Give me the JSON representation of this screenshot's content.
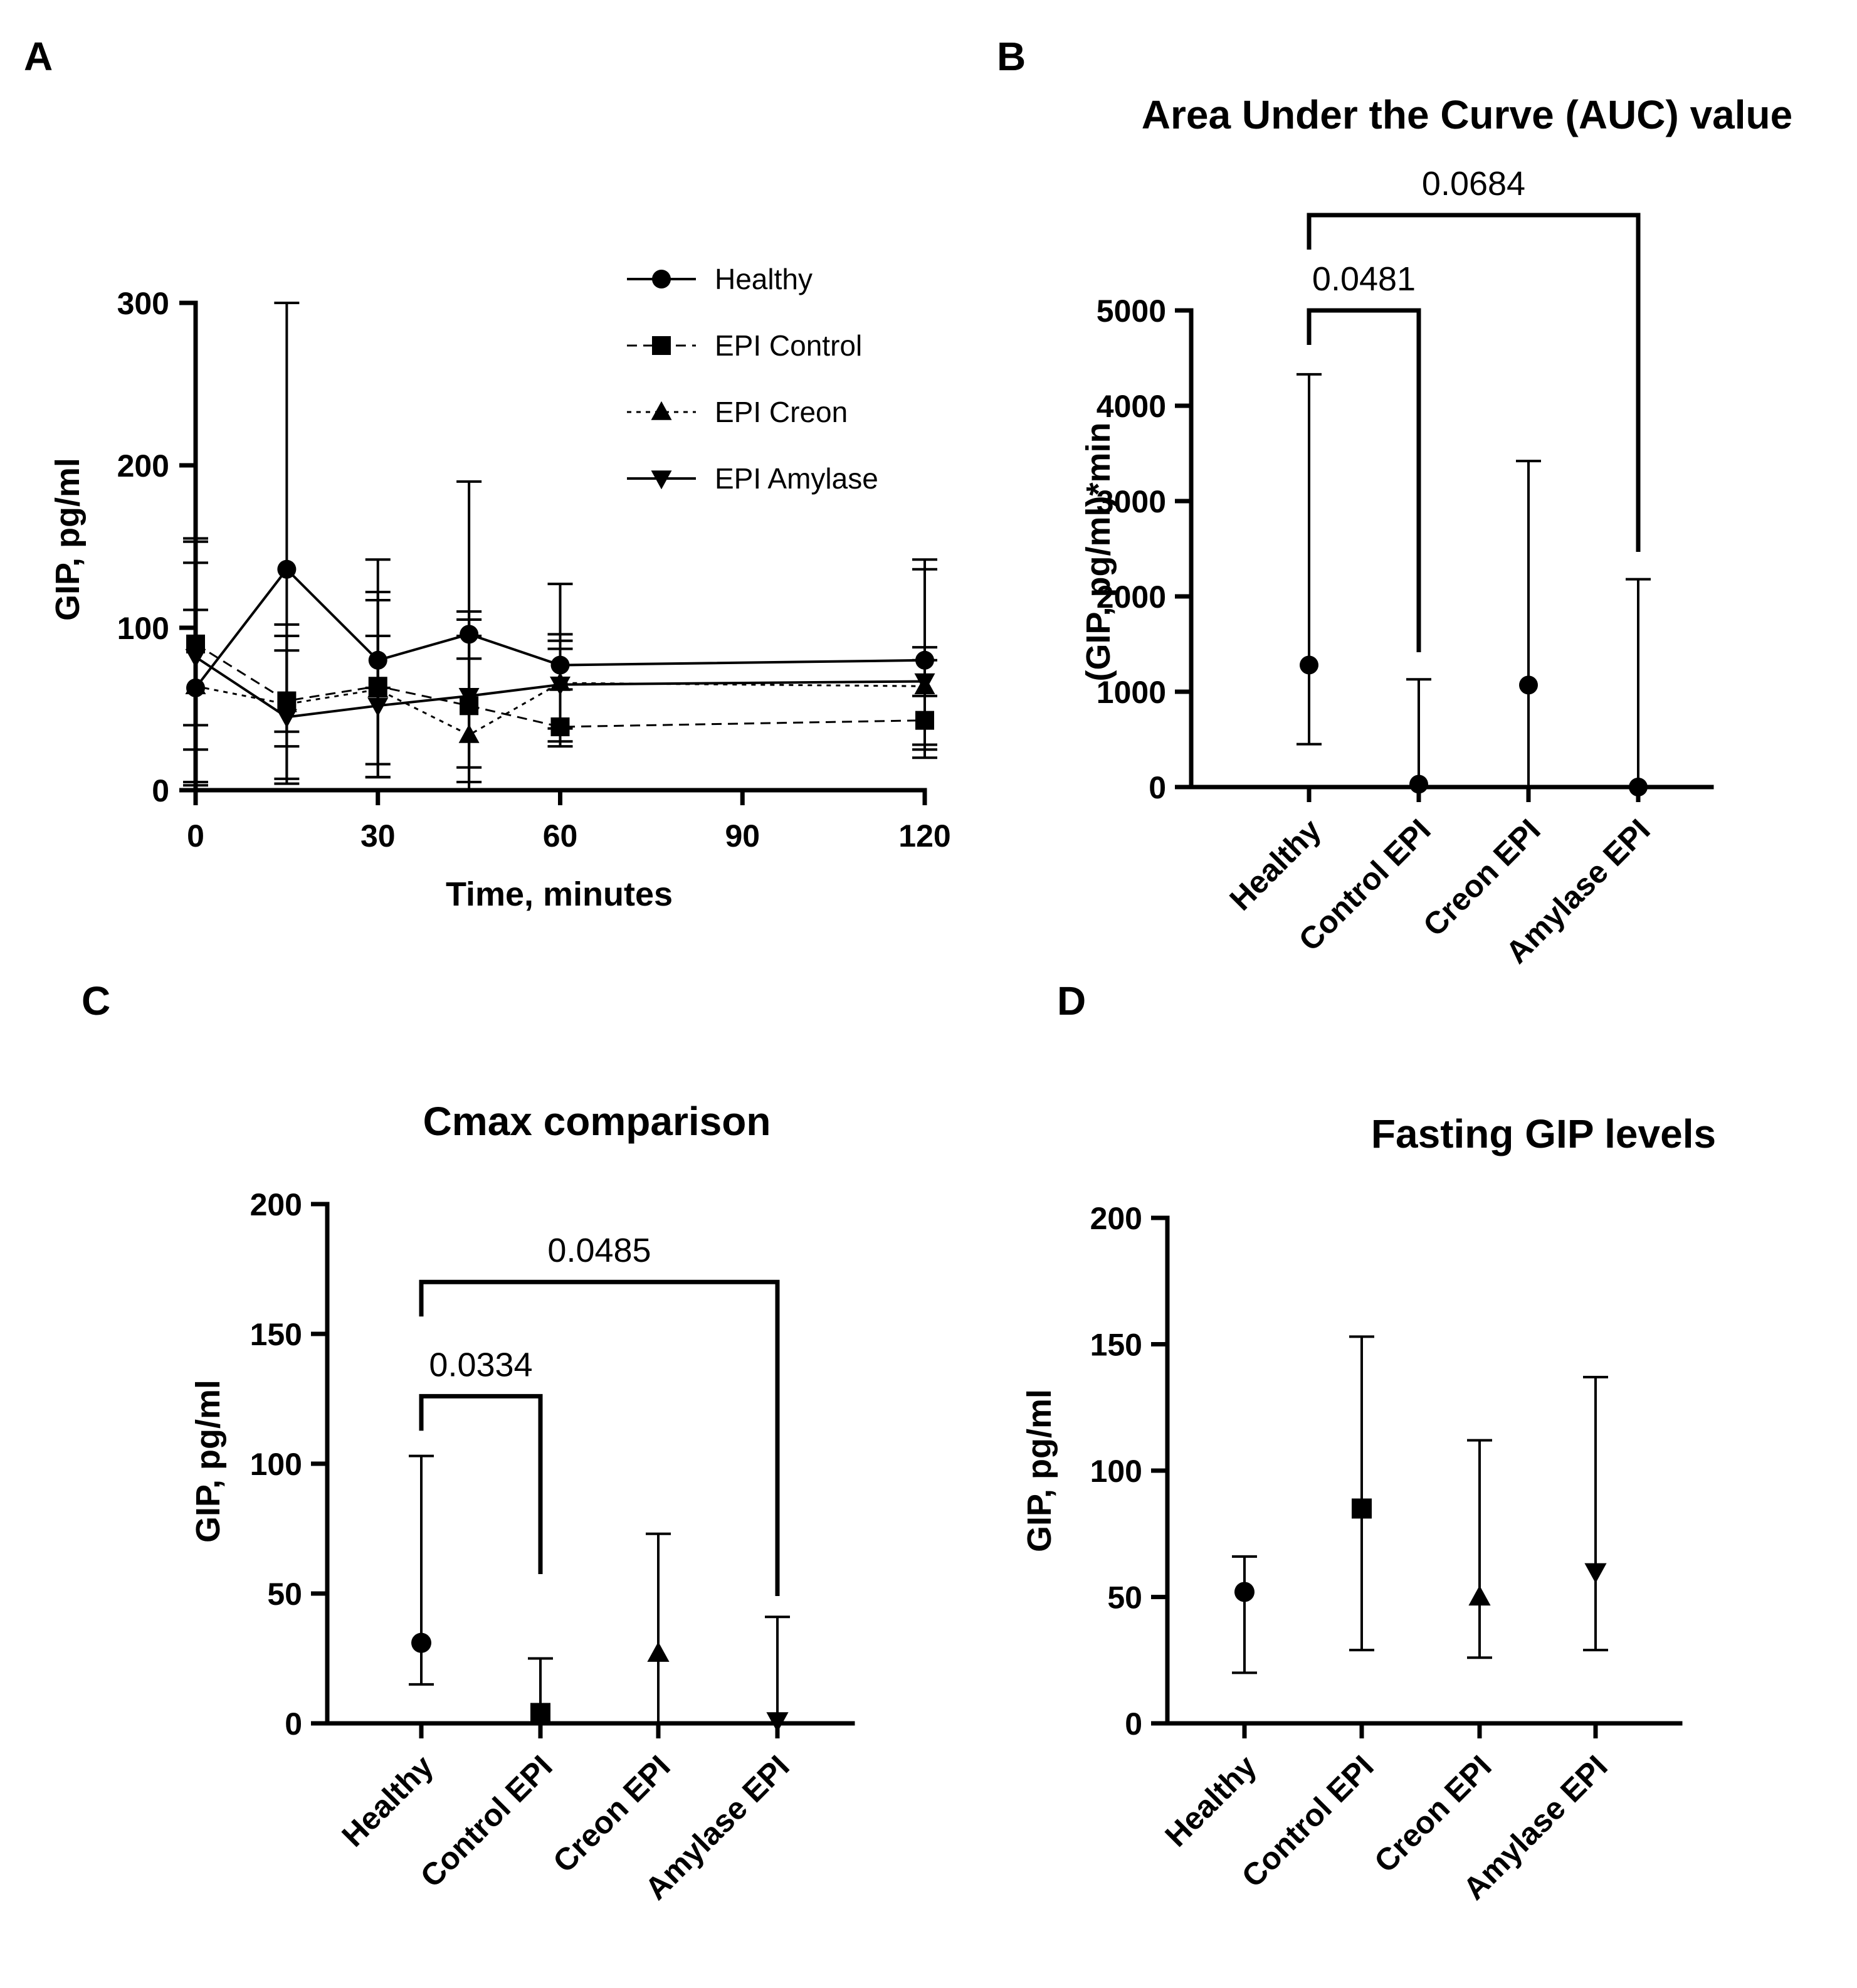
{
  "panels": {
    "A": "A",
    "B": "B",
    "C": "C",
    "D": "D"
  },
  "colors": {
    "ink": "#000000",
    "background": "#ffffff"
  },
  "chart_data": [
    {
      "id": "A",
      "type": "line",
      "title": "",
      "xlabel": "Time, minutes",
      "ylabel": "GIP, pg/ml",
      "xlim": [
        0,
        120
      ],
      "ylim": [
        0,
        300
      ],
      "xticks": [
        0,
        30,
        60,
        90,
        120
      ],
      "yticks": [
        0,
        100,
        200,
        300
      ],
      "legend_position": "top-right",
      "series": [
        {
          "name": "Healthy",
          "marker": "circle",
          "dash": "solid",
          "x": [
            0,
            15,
            30,
            45,
            60,
            120
          ],
          "y": [
            63,
            136,
            80,
            96,
            77,
            80
          ],
          "err_low": [
            40,
            36,
            63,
            81,
            62,
            58
          ],
          "err_high": [
            153,
            300,
            142,
            190,
            127,
            142
          ]
        },
        {
          "name": "EPI Control",
          "marker": "square",
          "dash": "dashed",
          "x": [
            0,
            15,
            30,
            45,
            60,
            120
          ],
          "y": [
            90,
            55,
            64,
            52,
            39,
            43
          ],
          "err_low": [
            3,
            27,
            8,
            14,
            27,
            20
          ],
          "err_high": [
            155,
            102,
            122,
            105,
            92,
            80
          ]
        },
        {
          "name": "EPI Creon",
          "marker": "triangle-up",
          "dash": "dotted",
          "x": [
            0,
            15,
            30,
            45,
            60,
            120
          ],
          "y": [
            64,
            53,
            62,
            34,
            66,
            64
          ],
          "err_low": [
            25,
            7,
            16,
            0,
            38,
            28
          ],
          "err_high": [
            111,
            95,
            117,
            110,
            96,
            88
          ]
        },
        {
          "name": "EPI Amylase",
          "marker": "triangle-down",
          "dash": "solid",
          "x": [
            0,
            15,
            30,
            45,
            60,
            120
          ],
          "y": [
            82,
            45,
            52,
            58,
            65,
            67
          ],
          "err_low": [
            5,
            4,
            8,
            5,
            30,
            25
          ],
          "err_high": [
            140,
            86,
            95,
            95,
            87,
            136
          ]
        }
      ]
    },
    {
      "id": "B",
      "type": "scatter",
      "title": "Area Under the Curve (AUC) value",
      "xlabel": "",
      "ylabel": "(GIP, pg/ml)*min",
      "ylim": [
        0,
        5000
      ],
      "yticks": [
        0,
        1000,
        2000,
        3000,
        4000,
        5000
      ],
      "categories": [
        "Healthy",
        "Control EPI",
        "Creon EPI",
        "Amylase EPI"
      ],
      "markers": [
        "circle",
        "circle",
        "circle",
        "circle"
      ],
      "values": [
        1280,
        30,
        1070,
        0
      ],
      "err_low": [
        450,
        0,
        0,
        0
      ],
      "err_high": [
        4330,
        1130,
        3420,
        2180
      ],
      "significance": [
        {
          "from": 0,
          "to": 1,
          "label": "0.0481",
          "level": 5000
        },
        {
          "from": 0,
          "to": 3,
          "label": "0.0684",
          "level": 6000
        }
      ]
    },
    {
      "id": "C",
      "type": "scatter",
      "title": "Cmax comparison",
      "xlabel": "",
      "ylabel": "GIP, pg/ml",
      "ylim": [
        0,
        200
      ],
      "yticks": [
        0,
        50,
        100,
        150,
        200
      ],
      "categories": [
        "Healthy",
        "Control EPI",
        "Creon EPI",
        "Amylase EPI"
      ],
      "markers": [
        "circle",
        "square",
        "triangle-up",
        "triangle-down"
      ],
      "values": [
        31,
        4,
        27,
        1
      ],
      "err_low": [
        15,
        0,
        0,
        0
      ],
      "err_high": [
        103,
        25,
        73,
        41
      ],
      "significance": [
        {
          "from": 0,
          "to": 1,
          "label": "0.0334",
          "level": 126
        },
        {
          "from": 0,
          "to": 3,
          "label": "0.0485",
          "level": 170
        }
      ]
    },
    {
      "id": "D",
      "type": "scatter",
      "title": "Fasting GIP  levels",
      "xlabel": "",
      "ylabel": "GIP, pg/ml",
      "ylim": [
        0,
        200
      ],
      "yticks": [
        0,
        50,
        100,
        150,
        200
      ],
      "categories": [
        "Healthy",
        "Control EPI",
        "Creon EPI",
        "Amylase EPI"
      ],
      "markers": [
        "circle",
        "square",
        "triangle-up",
        "triangle-down"
      ],
      "values": [
        52,
        85,
        50,
        60
      ],
      "err_low": [
        20,
        29,
        26,
        29
      ],
      "err_high": [
        66,
        153,
        112,
        137
      ],
      "significance": []
    }
  ]
}
